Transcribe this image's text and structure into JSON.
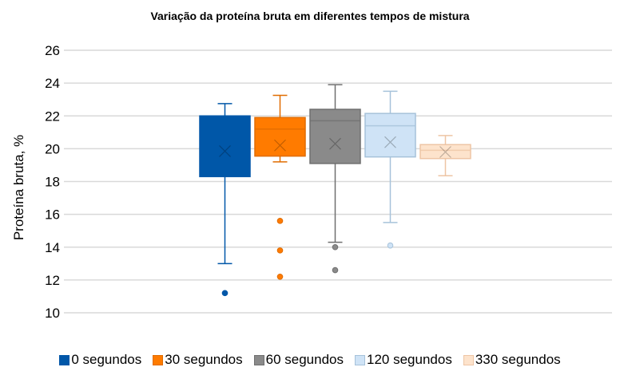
{
  "chart_data": {
    "type": "boxplot",
    "title": "Variação da proteína bruta em diferentes tempos de mistura",
    "xlabel": "",
    "ylabel": "Proteína bruta, %",
    "ylim": [
      10,
      26
    ],
    "yticks": [
      10,
      12,
      14,
      16,
      18,
      20,
      22,
      24,
      26
    ],
    "grid": true,
    "legend_position": "bottom",
    "series": [
      {
        "name": "0 segundos",
        "color": "#0057a8",
        "border": "#0057a8",
        "min": 13.0,
        "q1": 18.3,
        "median": 20.6,
        "q3": 22.0,
        "max": 22.75,
        "mean": 19.85,
        "outliers": [
          11.2
        ]
      },
      {
        "name": "30 segundos",
        "color": "#ff7b00",
        "border": "#e06c00",
        "min": 19.2,
        "q1": 19.55,
        "median": 21.2,
        "q3": 21.9,
        "max": 23.25,
        "mean": 20.2,
        "outliers": [
          15.6,
          13.8,
          12.2
        ]
      },
      {
        "name": "60 segundos",
        "color": "#8a8a8a",
        "border": "#6f6f6f",
        "min": 14.3,
        "q1": 19.1,
        "median": 21.7,
        "q3": 22.4,
        "max": 23.9,
        "mean": 20.3,
        "outliers": [
          14.0,
          12.6
        ]
      },
      {
        "name": "120 segundos",
        "color": "#cfe3f6",
        "border": "#a6c2da",
        "min": 15.5,
        "q1": 19.5,
        "median": 21.4,
        "q3": 22.15,
        "max": 23.5,
        "mean": 20.4,
        "outliers": [
          14.1
        ]
      },
      {
        "name": "330 segundos",
        "color": "#fde3cc",
        "border": "#eec5a5",
        "min": 18.35,
        "q1": 19.4,
        "median": 19.9,
        "q3": 20.25,
        "max": 20.8,
        "mean": 19.8,
        "outliers": []
      }
    ]
  }
}
